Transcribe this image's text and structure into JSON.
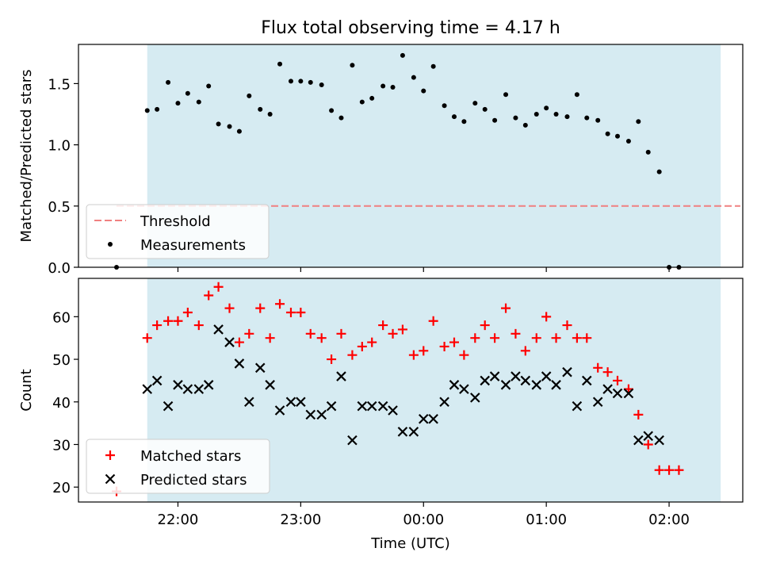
{
  "figure": {
    "title": "Flux total observing time = 4.17 h",
    "shade_color": "#add8e6",
    "shade_alpha": 0.5
  },
  "chart_data": [
    {
      "type": "scatter",
      "ylabel": "Matched/Predicted stars",
      "xlabel": "",
      "ylim": [
        0,
        1.82
      ],
      "yticks": [
        0.0,
        0.5,
        1.0,
        1.5
      ],
      "ytick_labels": [
        "0.0",
        "0.5",
        "1.0",
        "1.5"
      ],
      "xticks_shown": false,
      "shaded_x": [
        21.75,
        2.42
      ],
      "threshold": {
        "name": "Threshold",
        "value": 0.5,
        "x": [
          21.5,
          2.58
        ],
        "color": "#f08080"
      },
      "series": [
        {
          "name": "Measurements",
          "color": "#000000",
          "marker": "dot",
          "points": [
            [
              21.5,
              0.0
            ],
            [
              21.75,
              1.28
            ],
            [
              21.83,
              1.29
            ],
            [
              21.92,
              1.51
            ],
            [
              22.0,
              1.34
            ],
            [
              22.08,
              1.42
            ],
            [
              22.17,
              1.35
            ],
            [
              22.25,
              1.48
            ],
            [
              22.33,
              1.17
            ],
            [
              22.42,
              1.15
            ],
            [
              22.5,
              1.11
            ],
            [
              22.58,
              1.4
            ],
            [
              22.67,
              1.29
            ],
            [
              22.75,
              1.25
            ],
            [
              22.83,
              1.66
            ],
            [
              22.92,
              1.52
            ],
            [
              23.0,
              1.52
            ],
            [
              23.08,
              1.51
            ],
            [
              23.17,
              1.49
            ],
            [
              23.25,
              1.28
            ],
            [
              23.33,
              1.22
            ],
            [
              23.42,
              1.65
            ],
            [
              23.5,
              1.35
            ],
            [
              23.58,
              1.38
            ],
            [
              23.67,
              1.48
            ],
            [
              23.75,
              1.47
            ],
            [
              23.83,
              1.73
            ],
            [
              23.92,
              1.55
            ],
            [
              24.0,
              1.44
            ],
            [
              24.08,
              1.64
            ],
            [
              24.17,
              1.32
            ],
            [
              24.25,
              1.23
            ],
            [
              24.33,
              1.19
            ],
            [
              24.42,
              1.34
            ],
            [
              24.5,
              1.29
            ],
            [
              24.58,
              1.2
            ],
            [
              24.67,
              1.41
            ],
            [
              24.75,
              1.22
            ],
            [
              24.83,
              1.16
            ],
            [
              24.92,
              1.25
            ],
            [
              25.0,
              1.3
            ],
            [
              25.08,
              1.25
            ],
            [
              25.17,
              1.23
            ],
            [
              25.25,
              1.41
            ],
            [
              25.33,
              1.22
            ],
            [
              25.42,
              1.2
            ],
            [
              25.5,
              1.09
            ],
            [
              25.58,
              1.07
            ],
            [
              25.67,
              1.03
            ],
            [
              25.75,
              1.19
            ],
            [
              25.83,
              0.94
            ],
            [
              25.92,
              0.78
            ],
            [
              26.0,
              0.0
            ],
            [
              26.08,
              0.0
            ]
          ]
        }
      ],
      "legend": {
        "placement": "lower-left",
        "entries": [
          "Threshold",
          "Measurements"
        ]
      }
    },
    {
      "type": "scatter",
      "ylabel": "Count",
      "xlabel": "Time (UTC)",
      "ylim": [
        16.5,
        69
      ],
      "yticks": [
        20,
        30,
        40,
        50,
        60
      ],
      "ytick_labels": [
        "20",
        "30",
        "40",
        "50",
        "60"
      ],
      "xticks": [
        22.0,
        23.0,
        24.0,
        25.0,
        26.0
      ],
      "xtick_labels": [
        "22:00",
        "23:00",
        "00:00",
        "01:00",
        "02:00"
      ],
      "shaded_x": [
        21.75,
        2.42
      ],
      "series": [
        {
          "name": "Matched stars",
          "color": "#ff0000",
          "marker": "plus",
          "points": [
            [
              21.5,
              19
            ],
            [
              21.75,
              55
            ],
            [
              21.83,
              58
            ],
            [
              21.92,
              59
            ],
            [
              22.0,
              59
            ],
            [
              22.08,
              61
            ],
            [
              22.17,
              58
            ],
            [
              22.25,
              65
            ],
            [
              22.33,
              67
            ],
            [
              22.42,
              62
            ],
            [
              22.5,
              54
            ],
            [
              22.58,
              56
            ],
            [
              22.67,
              62
            ],
            [
              22.75,
              55
            ],
            [
              22.83,
              63
            ],
            [
              22.92,
              61
            ],
            [
              23.0,
              61
            ],
            [
              23.08,
              56
            ],
            [
              23.17,
              55
            ],
            [
              23.25,
              50
            ],
            [
              23.33,
              56
            ],
            [
              23.42,
              51
            ],
            [
              23.5,
              53
            ],
            [
              23.58,
              54
            ],
            [
              23.67,
              58
            ],
            [
              23.75,
              56
            ],
            [
              23.83,
              57
            ],
            [
              23.92,
              51
            ],
            [
              24.0,
              52
            ],
            [
              24.08,
              59
            ],
            [
              24.17,
              53
            ],
            [
              24.25,
              54
            ],
            [
              24.33,
              51
            ],
            [
              24.42,
              55
            ],
            [
              24.5,
              58
            ],
            [
              24.58,
              55
            ],
            [
              24.67,
              62
            ],
            [
              24.75,
              56
            ],
            [
              24.83,
              52
            ],
            [
              24.92,
              55
            ],
            [
              25.0,
              60
            ],
            [
              25.08,
              55
            ],
            [
              25.17,
              58
            ],
            [
              25.25,
              55
            ],
            [
              25.33,
              55
            ],
            [
              25.42,
              48
            ],
            [
              25.5,
              47
            ],
            [
              25.58,
              45
            ],
            [
              25.67,
              43
            ],
            [
              25.75,
              37
            ],
            [
              25.83,
              30
            ],
            [
              25.92,
              24
            ],
            [
              26.0,
              24
            ],
            [
              26.08,
              24
            ]
          ]
        },
        {
          "name": "Predicted stars",
          "color": "#000000",
          "marker": "x",
          "points": [
            [
              21.75,
              43
            ],
            [
              21.83,
              45
            ],
            [
              21.92,
              39
            ],
            [
              22.0,
              44
            ],
            [
              22.08,
              43
            ],
            [
              22.17,
              43
            ],
            [
              22.25,
              44
            ],
            [
              22.33,
              57
            ],
            [
              22.42,
              54
            ],
            [
              22.5,
              49
            ],
            [
              22.58,
              40
            ],
            [
              22.67,
              48
            ],
            [
              22.75,
              44
            ],
            [
              22.83,
              38
            ],
            [
              22.92,
              40
            ],
            [
              23.0,
              40
            ],
            [
              23.08,
              37
            ],
            [
              23.17,
              37
            ],
            [
              23.25,
              39
            ],
            [
              23.33,
              46
            ],
            [
              23.42,
              31
            ],
            [
              23.5,
              39
            ],
            [
              23.58,
              39
            ],
            [
              23.67,
              39
            ],
            [
              23.75,
              38
            ],
            [
              23.83,
              33
            ],
            [
              23.92,
              33
            ],
            [
              24.0,
              36
            ],
            [
              24.08,
              36
            ],
            [
              24.17,
              40
            ],
            [
              24.25,
              44
            ],
            [
              24.33,
              43
            ],
            [
              24.42,
              41
            ],
            [
              24.5,
              45
            ],
            [
              24.58,
              46
            ],
            [
              24.67,
              44
            ],
            [
              24.75,
              46
            ],
            [
              24.83,
              45
            ],
            [
              24.92,
              44
            ],
            [
              25.0,
              46
            ],
            [
              25.08,
              44
            ],
            [
              25.17,
              47
            ],
            [
              25.25,
              39
            ],
            [
              25.33,
              45
            ],
            [
              25.42,
              40
            ],
            [
              25.5,
              43
            ],
            [
              25.58,
              42
            ],
            [
              25.67,
              42
            ],
            [
              25.75,
              31
            ],
            [
              25.83,
              32
            ],
            [
              25.92,
              31
            ]
          ]
        }
      ],
      "legend": {
        "placement": "lower-left",
        "entries": [
          "Matched stars",
          "Predicted stars"
        ]
      }
    }
  ]
}
